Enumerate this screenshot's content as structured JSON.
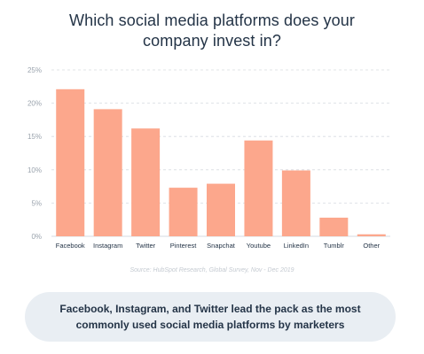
{
  "title_lines": [
    "Which social media platforms does your",
    "company invest in?"
  ],
  "source": "Source: HubSpot Research, Global Survey, Nov - Dec 2019",
  "callout": "Facebook, Instagram, and Twitter lead the pack as the most commonly used social media platforms by marketers",
  "colors": {
    "bar": "#fca78c",
    "grid": "#d6dbe0",
    "axis_text": "#9aa3ad",
    "cat_text": "#243447"
  },
  "chart_data": {
    "type": "bar",
    "title": "Which social media platforms does your company invest in?",
    "categories": [
      "Facebook",
      "Instagram",
      "Twitter",
      "Pinterest",
      "Snapchat",
      "Youtube",
      "LinkedIn",
      "Tumblr",
      "Other"
    ],
    "values": [
      22.1,
      19.1,
      16.2,
      7.3,
      7.9,
      14.4,
      9.9,
      2.8,
      0.3
    ],
    "ylim": [
      0,
      25
    ],
    "yticks": [
      "0%",
      "5%",
      "10%",
      "15%",
      "20%",
      "25%"
    ],
    "ytick_values": [
      0,
      5,
      10,
      15,
      20,
      25
    ],
    "grid": true,
    "xlabel": "",
    "ylabel": ""
  }
}
